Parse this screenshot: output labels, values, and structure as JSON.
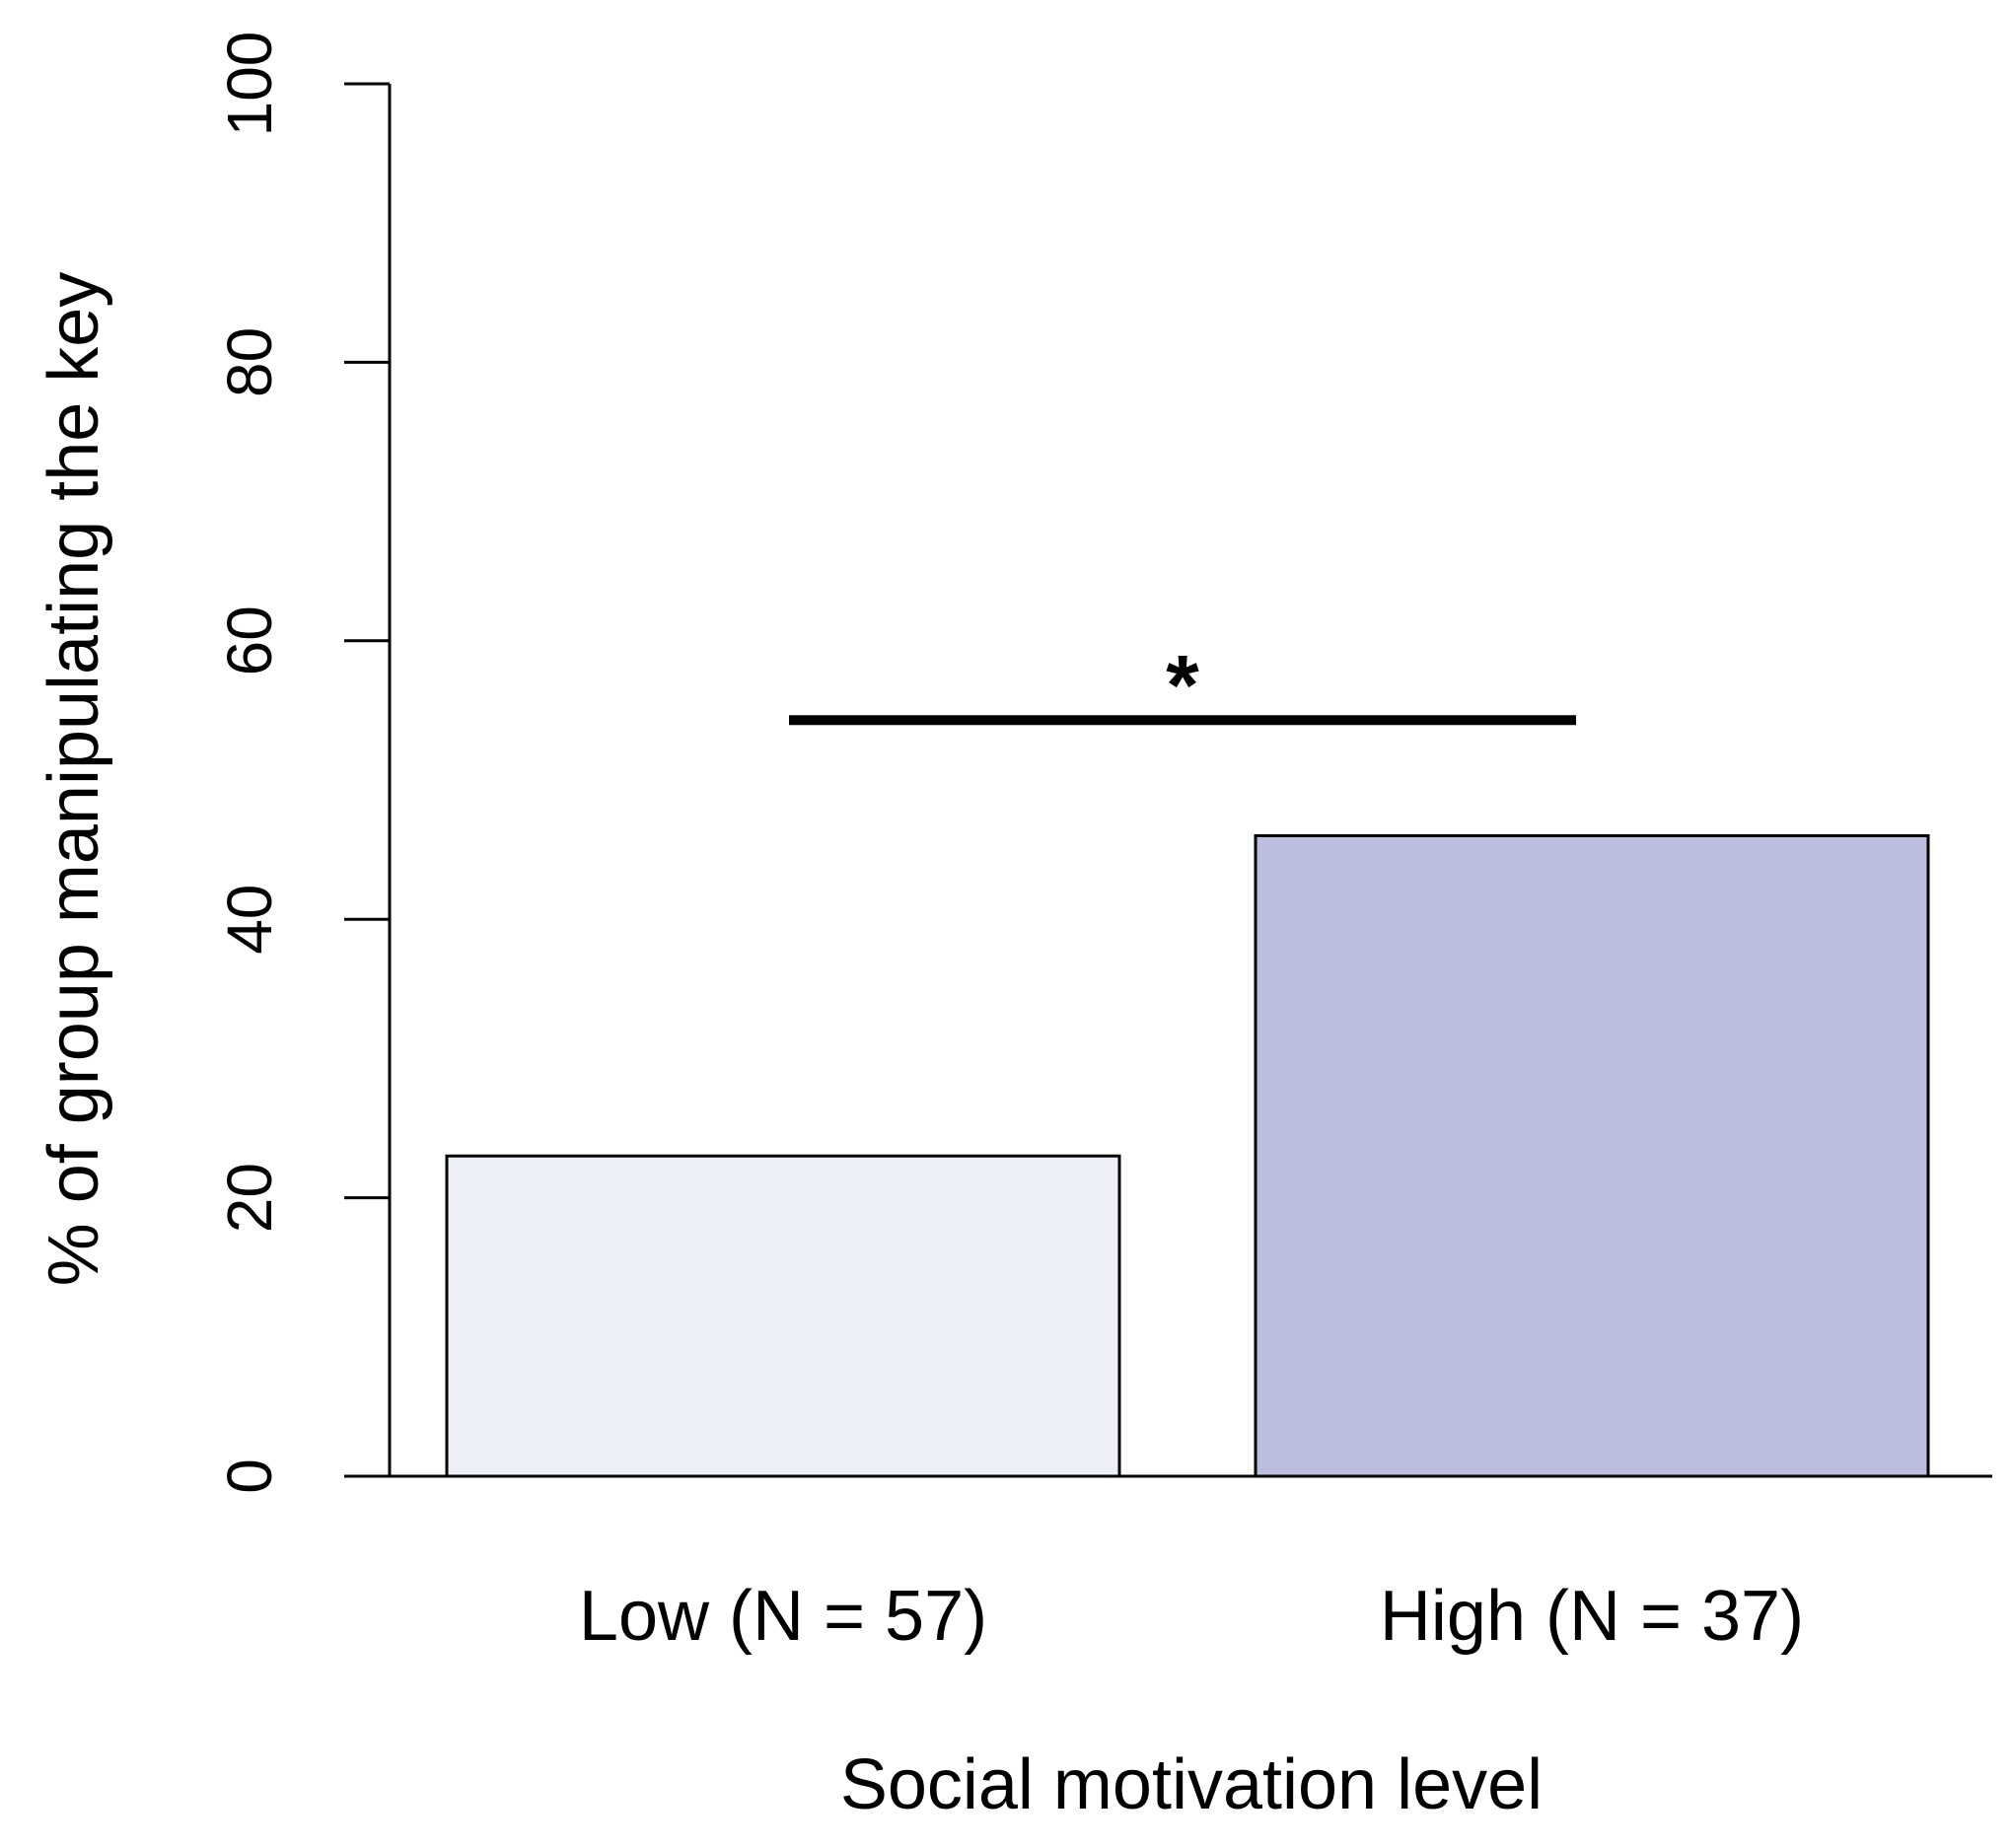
{
  "chart_data": {
    "type": "bar",
    "title": "",
    "xlabel": "Social motivation level",
    "ylabel": "% of group manipulating the key",
    "categories": [
      "Low (N = 57)",
      "High (N = 37)"
    ],
    "values": [
      23,
      46
    ],
    "colors": [
      "#eeeef7",
      "#bdbde0"
    ],
    "ylim": [
      0,
      100
    ],
    "yticks": [
      0,
      20,
      40,
      60,
      80,
      100
    ],
    "ytick_labels": [
      "0",
      "20",
      "40",
      "60",
      "80",
      "100"
    ],
    "grid": false,
    "annotations": [
      {
        "text": "*",
        "type": "significance",
        "y": 54.3,
        "between": [
          "Low (N = 57)",
          "High (N = 37)"
        ]
      }
    ]
  }
}
